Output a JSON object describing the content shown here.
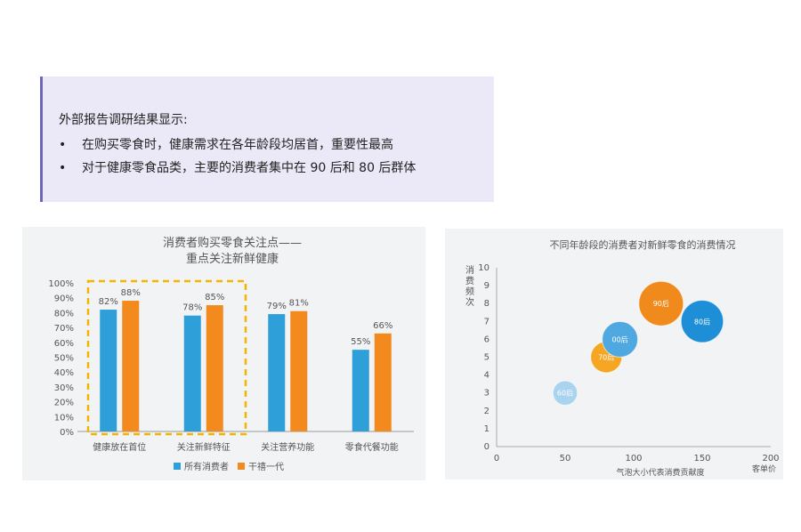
{
  "callout": {
    "heading": "外部报告调研结果显示:",
    "bullets": [
      {
        "dot": "•",
        "text": "在购买零食时，健康需求在各年龄段均居首，重要性最高"
      },
      {
        "dot": "•",
        "text": "对于健康零食品类，主要的消费者集中在  90 后和 80 后群体"
      }
    ]
  },
  "chart_data": [
    {
      "type": "bar",
      "title_line1": "消费者购买零食关注点——",
      "title_line2": "重点关注新鲜健康",
      "categories": [
        "健康放在首位",
        "关注新鲜特征",
        "关注营养功能",
        "零食代餐功能"
      ],
      "series": [
        {
          "name": "所有消费者",
          "color": "#2e9fd8",
          "values": [
            82,
            78,
            79,
            55
          ],
          "labels": [
            "82%",
            "78%",
            "79%",
            "55%"
          ]
        },
        {
          "name": "干禧一代",
          "color": "#f28a1e",
          "values": [
            88,
            85,
            81,
            66
          ],
          "labels": [
            "88%",
            "85%",
            "81%",
            "66%"
          ]
        }
      ],
      "yticks": [
        "0%",
        "10%",
        "20%",
        "30%",
        "40%",
        "50%",
        "60%",
        "70%",
        "80%",
        "90%",
        "100%"
      ],
      "ylim": [
        0,
        100
      ],
      "highlight_color": "#f5b400",
      "legend_position": "bottom"
    },
    {
      "type": "scatter",
      "title": "不同年龄段的消费者对新鲜零食的消费情况",
      "ylabel": "消费频次",
      "xlabel": "气泡大小代表消费贡献度",
      "xlabel_end": "客单价",
      "xticks": [
        "0",
        "50",
        "100",
        "150",
        "200"
      ],
      "yticks": [
        "0",
        "1",
        "2",
        "3",
        "4",
        "5",
        "6",
        "7",
        "8",
        "9",
        "10"
      ],
      "xlim": [
        0,
        200
      ],
      "ylim": [
        0,
        10
      ],
      "points": [
        {
          "label": "60后",
          "x": 50,
          "y": 3,
          "size": 0.55,
          "color": "#a9d3ee"
        },
        {
          "label": "70后",
          "x": 80,
          "y": 5,
          "size": 0.7,
          "color": "#f5a623"
        },
        {
          "label": "00后",
          "x": 90,
          "y": 6,
          "size": 0.8,
          "color": "#4fa9e0"
        },
        {
          "label": "90后",
          "x": 120,
          "y": 8,
          "size": 1.0,
          "color": "#f08a1c"
        },
        {
          "label": "80后",
          "x": 150,
          "y": 7,
          "size": 0.95,
          "color": "#1e8fd6"
        }
      ]
    }
  ]
}
